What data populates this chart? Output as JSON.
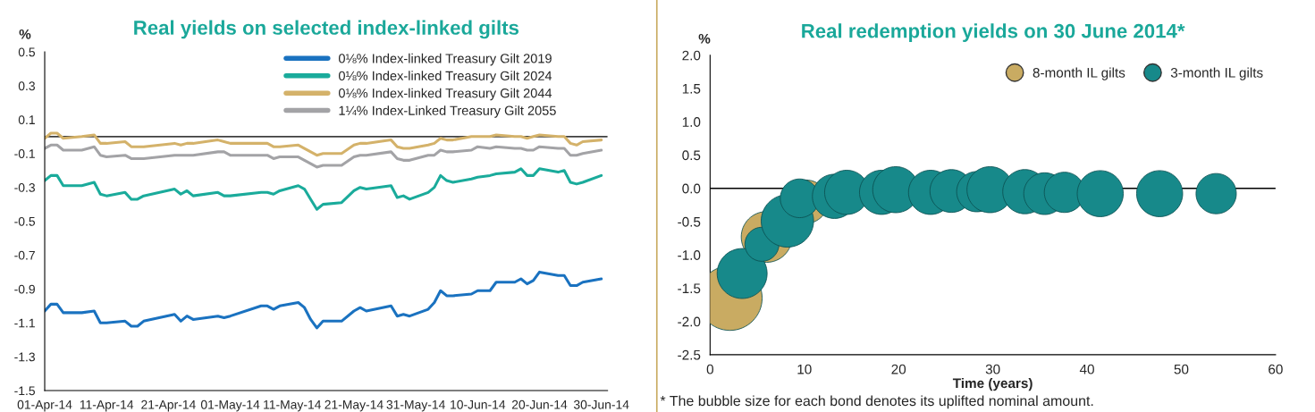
{
  "chart_data": [
    {
      "type": "line",
      "title": "Real yields on selected index-linked gilts",
      "ylabel": "%",
      "x": [
        "2014-04-01",
        "2014-04-02",
        "2014-04-03",
        "2014-04-04",
        "2014-04-07",
        "2014-04-09",
        "2014-04-10",
        "2014-04-11",
        "2014-04-14",
        "2014-04-15",
        "2014-04-16",
        "2014-04-17",
        "2014-04-22",
        "2014-04-23",
        "2014-04-24",
        "2014-04-25",
        "2014-04-29",
        "2014-04-30",
        "2014-05-01",
        "2014-05-06",
        "2014-05-07",
        "2014-05-08",
        "2014-05-09",
        "2014-05-12",
        "2014-05-13",
        "2014-05-14",
        "2014-05-15",
        "2014-05-16",
        "2014-05-19",
        "2014-05-21",
        "2014-05-22",
        "2014-05-23",
        "2014-05-27",
        "2014-05-28",
        "2014-05-29",
        "2014-05-30",
        "2014-06-02",
        "2014-06-03",
        "2014-06-04",
        "2014-06-05",
        "2014-06-06",
        "2014-06-09",
        "2014-06-10",
        "2014-06-12",
        "2014-06-13",
        "2014-06-16",
        "2014-06-17",
        "2014-06-18",
        "2014-06-19",
        "2014-06-20",
        "2014-06-23",
        "2014-06-24",
        "2014-06-25",
        "2014-06-26",
        "2014-06-27",
        "2014-06-30"
      ],
      "series": [
        {
          "name": "0⅛% Index-linked Treasury Gilt 2019",
          "color": "#1a72c0",
          "values": [
            -1.03,
            -0.99,
            -0.99,
            -1.04,
            -1.04,
            -1.03,
            -1.1,
            -1.1,
            -1.09,
            -1.12,
            -1.12,
            -1.09,
            -1.05,
            -1.09,
            -1.06,
            -1.08,
            -1.06,
            -1.07,
            -1.06,
            -1.0,
            -1.0,
            -1.02,
            -1.0,
            -0.98,
            -1.01,
            -1.08,
            -1.13,
            -1.09,
            -1.09,
            -1.03,
            -1.01,
            -1.03,
            -1.0,
            -1.06,
            -1.05,
            -1.06,
            -1.02,
            -0.98,
            -0.91,
            -0.94,
            -0.94,
            -0.93,
            -0.91,
            -0.91,
            -0.86,
            -0.86,
            -0.84,
            -0.87,
            -0.85,
            -0.8,
            -0.82,
            -0.82,
            -0.88,
            -0.88,
            -0.86,
            -0.84
          ]
        },
        {
          "name": "0⅛% Index-linked Treasury Gilt 2024",
          "color": "#1aab9b",
          "values": [
            -0.26,
            -0.23,
            -0.23,
            -0.29,
            -0.29,
            -0.27,
            -0.34,
            -0.35,
            -0.33,
            -0.37,
            -0.37,
            -0.35,
            -0.31,
            -0.34,
            -0.32,
            -0.35,
            -0.33,
            -0.35,
            -0.35,
            -0.33,
            -0.33,
            -0.34,
            -0.32,
            -0.29,
            -0.31,
            -0.37,
            -0.43,
            -0.4,
            -0.39,
            -0.32,
            -0.3,
            -0.31,
            -0.29,
            -0.36,
            -0.35,
            -0.37,
            -0.33,
            -0.3,
            -0.23,
            -0.26,
            -0.27,
            -0.25,
            -0.24,
            -0.23,
            -0.22,
            -0.21,
            -0.19,
            -0.23,
            -0.23,
            -0.19,
            -0.21,
            -0.2,
            -0.27,
            -0.28,
            -0.27,
            -0.23
          ]
        },
        {
          "name": "0⅛% Index-linked Treasury Gilt 2044",
          "color": "#d4b26a",
          "values": [
            -0.01,
            0.02,
            0.02,
            -0.01,
            0.0,
            0.01,
            -0.04,
            -0.04,
            -0.03,
            -0.06,
            -0.06,
            -0.06,
            -0.04,
            -0.05,
            -0.04,
            -0.04,
            -0.02,
            -0.03,
            -0.04,
            -0.04,
            -0.04,
            -0.06,
            -0.06,
            -0.05,
            -0.07,
            -0.09,
            -0.11,
            -0.1,
            -0.1,
            -0.05,
            -0.04,
            -0.04,
            -0.02,
            -0.06,
            -0.07,
            -0.07,
            -0.05,
            -0.04,
            -0.01,
            -0.02,
            -0.02,
            0.0,
            0.0,
            0.0,
            0.01,
            0.0,
            0.0,
            -0.01,
            0.0,
            0.01,
            0.0,
            0.0,
            -0.04,
            -0.05,
            -0.03,
            -0.02
          ]
        },
        {
          "name": "1¼% Index-Linked Treasury Gilt 2055",
          "color": "#a3a3a6",
          "values": [
            -0.07,
            -0.05,
            -0.05,
            -0.08,
            -0.08,
            -0.06,
            -0.11,
            -0.12,
            -0.11,
            -0.13,
            -0.13,
            -0.13,
            -0.11,
            -0.11,
            -0.11,
            -0.11,
            -0.09,
            -0.09,
            -0.11,
            -0.11,
            -0.11,
            -0.13,
            -0.12,
            -0.12,
            -0.14,
            -0.16,
            -0.18,
            -0.17,
            -0.17,
            -0.12,
            -0.11,
            -0.11,
            -0.09,
            -0.13,
            -0.14,
            -0.14,
            -0.11,
            -0.11,
            -0.08,
            -0.09,
            -0.09,
            -0.08,
            -0.06,
            -0.07,
            -0.06,
            -0.07,
            -0.07,
            -0.08,
            -0.08,
            -0.06,
            -0.07,
            -0.07,
            -0.11,
            -0.11,
            -0.1,
            -0.08
          ]
        }
      ],
      "xlim": [
        "2014-04-01",
        "2014-07-01"
      ],
      "xticks": [
        {
          "value": "2014-04-01",
          "label": "01-Apr-14"
        },
        {
          "value": "2014-04-11",
          "label": "11-Apr-14"
        },
        {
          "value": "2014-04-21",
          "label": "21-Apr-14"
        },
        {
          "value": "2014-05-01",
          "label": "01-May-14"
        },
        {
          "value": "2014-05-11",
          "label": "11-May-14"
        },
        {
          "value": "2014-05-21",
          "label": "21-May-14"
        },
        {
          "value": "2014-05-31",
          "label": "31-May-14"
        },
        {
          "value": "2014-06-10",
          "label": "10-Jun-14"
        },
        {
          "value": "2014-06-20",
          "label": "20-Jun-14"
        },
        {
          "value": "2014-06-30",
          "label": "30-Jun-14"
        }
      ],
      "ylim": [
        -1.5,
        0.5
      ],
      "yticks": [
        -1.5,
        -1.3,
        -1.1,
        -0.9,
        -0.7,
        -0.5,
        -0.3,
        -0.1,
        0.1,
        0.3,
        0.5
      ],
      "ref_lines": [
        {
          "axis": "y",
          "value": 0,
          "color": "#404040"
        }
      ],
      "legend": "top right"
    },
    {
      "type": "bubble",
      "title": "Real redemption yields on 30 June 2014*",
      "xlabel": "Time (years)",
      "ylabel": "%",
      "series": [
        {
          "name": "8-month IL gilts",
          "color": "#c9ab62",
          "x": [
            2.1,
            6.0,
            10.2
          ],
          "values": [
            -1.65,
            -0.73,
            -0.2
          ],
          "sizes": [
            1,
            0.62,
            0.45
          ]
        },
        {
          "name": "3-month IL gilts",
          "color": "#17898a",
          "x": [
            3.4,
            5.5,
            8.2,
            9.5,
            13.2,
            14.5,
            18.2,
            19.7,
            23.4,
            25.6,
            28.3,
            29.7,
            33.4,
            35.5,
            37.6,
            41.4,
            47.7,
            53.7
          ],
          "values": [
            -1.28,
            -0.84,
            -0.49,
            -0.15,
            -0.12,
            -0.06,
            -0.06,
            -0.02,
            -0.06,
            -0.04,
            -0.05,
            -0.02,
            -0.05,
            -0.08,
            -0.06,
            -0.08,
            -0.08,
            -0.08
          ],
          "sizes": [
            0.6,
            0.28,
            0.66,
            0.36,
            0.47,
            0.47,
            0.47,
            0.51,
            0.47,
            0.44,
            0.39,
            0.51,
            0.47,
            0.42,
            0.39,
            0.51,
            0.51,
            0.39
          ]
        }
      ],
      "xlim": [
        0,
        60
      ],
      "xticks": [
        0,
        10,
        20,
        30,
        40,
        50,
        60
      ],
      "ylim": [
        -2.5,
        2.0
      ],
      "yticks": [
        {
          "value": -2.5,
          "label": "-2.5"
        },
        {
          "value": -2.0,
          "label": "-2.0"
        },
        {
          "value": -1.5,
          "label": "-1.5"
        },
        {
          "value": -1.0,
          "label": "-1.0"
        },
        {
          "value": -0.5,
          "label": "-0.5"
        },
        {
          "value": 0.0,
          "label": "0.0"
        },
        {
          "value": 0.5,
          "label": "0.5"
        },
        {
          "value": 1.0,
          "label": "1.0"
        },
        {
          "value": 1.5,
          "label": "1.5"
        },
        {
          "value": 2.0,
          "label": "2.0"
        }
      ],
      "ref_lines": [
        {
          "axis": "y",
          "value": 0,
          "color": "#000000"
        }
      ],
      "legend": "top right",
      "annotations": [
        "* The bubble size for each bond denotes its uplifted nominal amount."
      ]
    }
  ]
}
